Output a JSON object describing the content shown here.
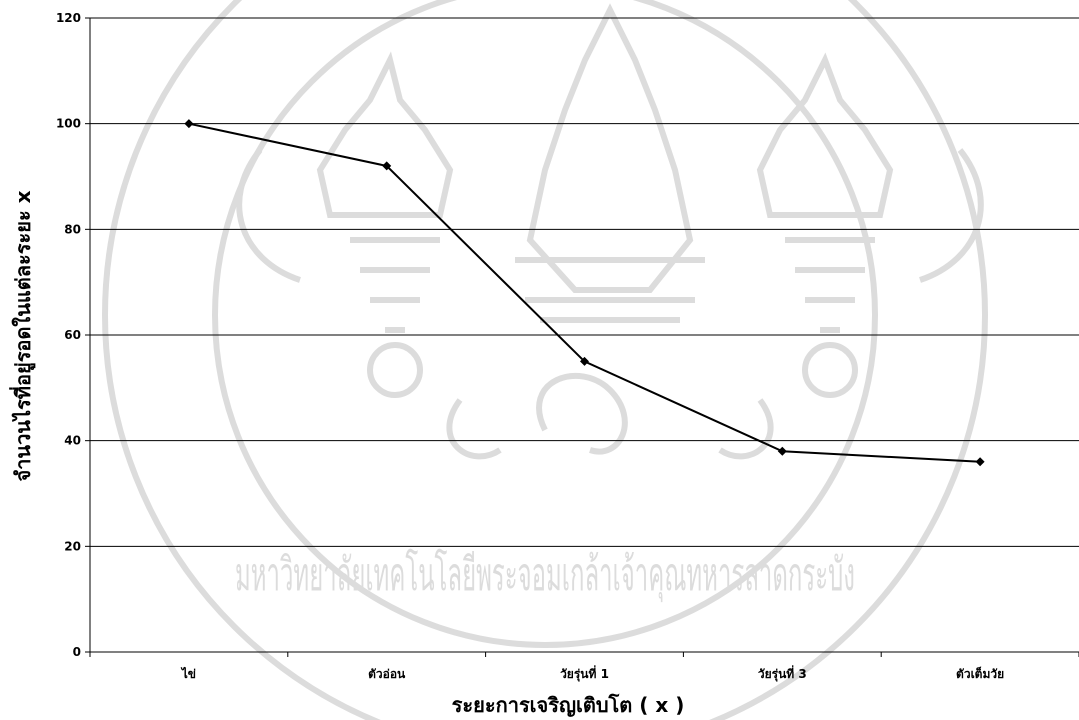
{
  "chart_data": {
    "type": "line",
    "categories": [
      "ไข่",
      "ตัวอ่อน",
      "วัยรุ่นที่ 1",
      "วัยรุ่นที่ 3",
      "ตัวเต็มวัย"
    ],
    "series": [
      {
        "values": [
          100,
          92,
          55,
          38,
          36
        ]
      }
    ],
    "xlabel": "ระยะการเจริญเติบโต ( x )",
    "ylabel": "จำนวนไรที่อยู่รอดในแต่ละระยะ x",
    "ylim": [
      0,
      120
    ],
    "yticks": [
      0,
      20,
      40,
      60,
      80,
      100,
      120
    ],
    "grid": true,
    "legend": "none",
    "colors": {
      "line": "#000000",
      "grid": "#000000",
      "watermark": "#d9d9d9"
    }
  },
  "watermark": {
    "text": "มหาวิทยาลัยเทคโนโลยีพระจอมเกล้าเจ้าคุณทหารลาดกระบัง",
    "icon": "university-seal-icon"
  }
}
